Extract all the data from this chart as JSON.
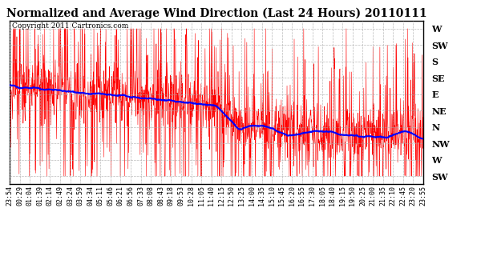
{
  "title": "Normalized and Average Wind Direction (Last 24 Hours) 20110111",
  "copyright": "Copyright 2011 Cartronics.com",
  "background_color": "#ffffff",
  "plot_bg_color": "#ffffff",
  "grid_color": "#aaaaaa",
  "red_color": "#ff0000",
  "blue_color": "#0000ff",
  "y_labels": [
    "W",
    "SW",
    "S",
    "SE",
    "E",
    "NE",
    "N",
    "NW",
    "W",
    "SW"
  ],
  "y_values": [
    9,
    8,
    7,
    6,
    5,
    4,
    3,
    2,
    1,
    0
  ],
  "x_tick_labels_row1": [
    "54",
    "29",
    "04",
    "39",
    "14",
    "49",
    "24",
    "59",
    "34",
    "11",
    "46",
    "21",
    "56",
    "33",
    "08",
    "43",
    "18",
    "53",
    "28",
    "05",
    "40",
    "15",
    "50",
    "25",
    "00",
    "35",
    "10",
    "45",
    "20",
    "55",
    "30",
    "05",
    "40",
    "15",
    "50",
    "25",
    "00",
    "35",
    "10",
    "45",
    "20",
    "55"
  ],
  "x_tick_labels_row2": [
    "23:",
    "00:",
    "01:",
    "01:",
    "02:",
    "02:",
    "03:",
    "03:",
    "04:",
    "05:",
    "05:",
    "06:",
    "06:",
    "07:",
    "08:",
    "08:",
    "09:",
    "09:",
    "10:",
    "11:",
    "11:",
    "12:",
    "12:",
    "13:",
    "14:",
    "14:",
    "15:",
    "15:",
    "16:",
    "16:",
    "17:",
    "18:",
    "18:",
    "19:",
    "19:",
    "20:",
    "21:",
    "21:",
    "22:",
    "22:",
    "23:",
    "23:"
  ],
  "x_tick_labels": [
    "23:54",
    "00:29",
    "01:04",
    "01:39",
    "02:14",
    "02:49",
    "03:24",
    "03:59",
    "04:34",
    "05:11",
    "05:46",
    "06:21",
    "06:56",
    "07:33",
    "08:08",
    "08:43",
    "09:18",
    "09:53",
    "10:28",
    "11:05",
    "11:40",
    "12:15",
    "12:50",
    "13:25",
    "14:00",
    "14:35",
    "15:10",
    "15:45",
    "16:20",
    "16:55",
    "17:30",
    "18:05",
    "18:40",
    "19:15",
    "19:50",
    "20:25",
    "21:00",
    "21:35",
    "22:10",
    "22:45",
    "23:20",
    "23:55"
  ],
  "n_ticks": 42,
  "y_min": 0,
  "y_max": 9,
  "title_fontsize": 10,
  "copyright_fontsize": 6.5,
  "ytick_fontsize": 8,
  "xtick_fontsize": 6
}
